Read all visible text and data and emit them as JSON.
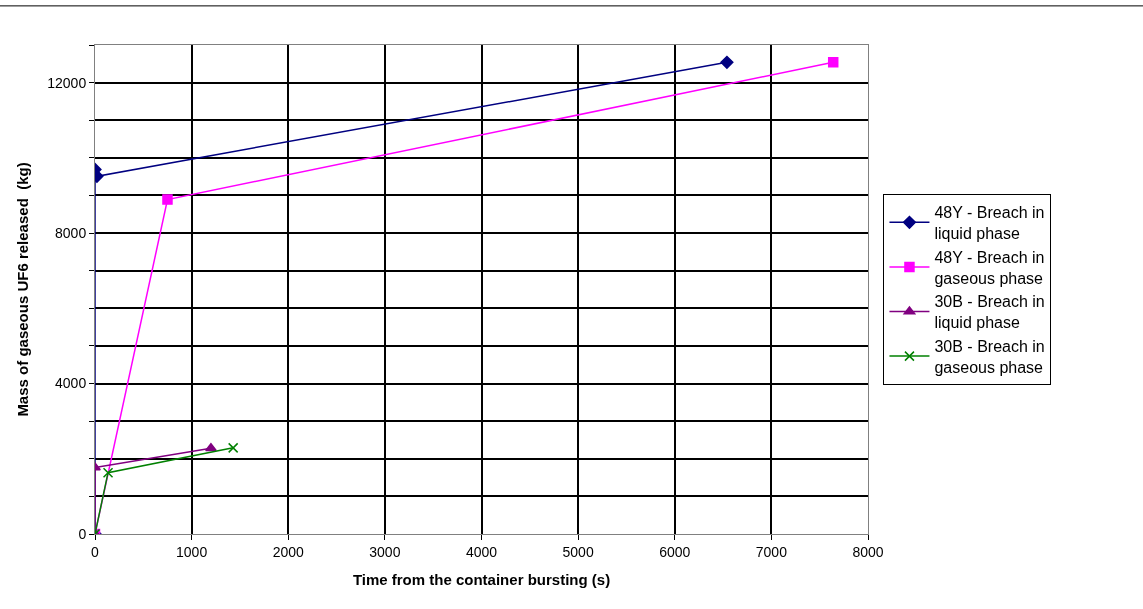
{
  "chart_data": {
    "type": "line",
    "xlabel": "Time from the container bursting (s)",
    "ylabel": "Mass of gaseous UF6 released  (kg)",
    "xlim": [
      0,
      8000
    ],
    "xticks": [
      0,
      1000,
      2000,
      3000,
      4000,
      5000,
      6000,
      7000,
      8000
    ],
    "ylim": [
      0,
      13000
    ],
    "yticks": [
      0,
      {
        "value": 1000,
        "label": null
      },
      {
        "value": 2000,
        "label": null
      },
      {
        "value": 3000,
        "label": null
      },
      4000,
      {
        "value": 5000,
        "label": null
      },
      {
        "value": 6000,
        "label": null
      },
      {
        "value": 7000,
        "label": null
      },
      8000,
      {
        "value": 9000,
        "label": null
      },
      {
        "value": 10000,
        "label": null
      },
      {
        "value": 11000,
        "label": null
      },
      12000,
      {
        "value": 13000,
        "label": null
      }
    ],
    "grid": true,
    "legend": "right",
    "series": [
      {
        "name": "48Y - Breach in liquid phase",
        "color": "#000080",
        "marker": "diamond",
        "x": [
          0,
          0,
          20,
          6540
        ],
        "values": [
          0,
          9690,
          9510,
          12540
        ]
      },
      {
        "name": "48Y - Breach in gaseous phase",
        "color": "#ff00ff",
        "marker": "square",
        "x": [
          0,
          750,
          7640
        ],
        "values": [
          0,
          8890,
          12540
        ]
      },
      {
        "name": "30B - Breach in liquid phase",
        "color": "#800080",
        "marker": "triangle",
        "x": [
          0,
          0,
          1200
        ],
        "values": [
          0,
          1770,
          2280
        ]
      },
      {
        "name": "30B - Breach in gaseous phase",
        "color": "#008000",
        "marker": "cross",
        "x": [
          0,
          135,
          1430
        ],
        "values": [
          0,
          1630,
          2290
        ]
      }
    ]
  }
}
